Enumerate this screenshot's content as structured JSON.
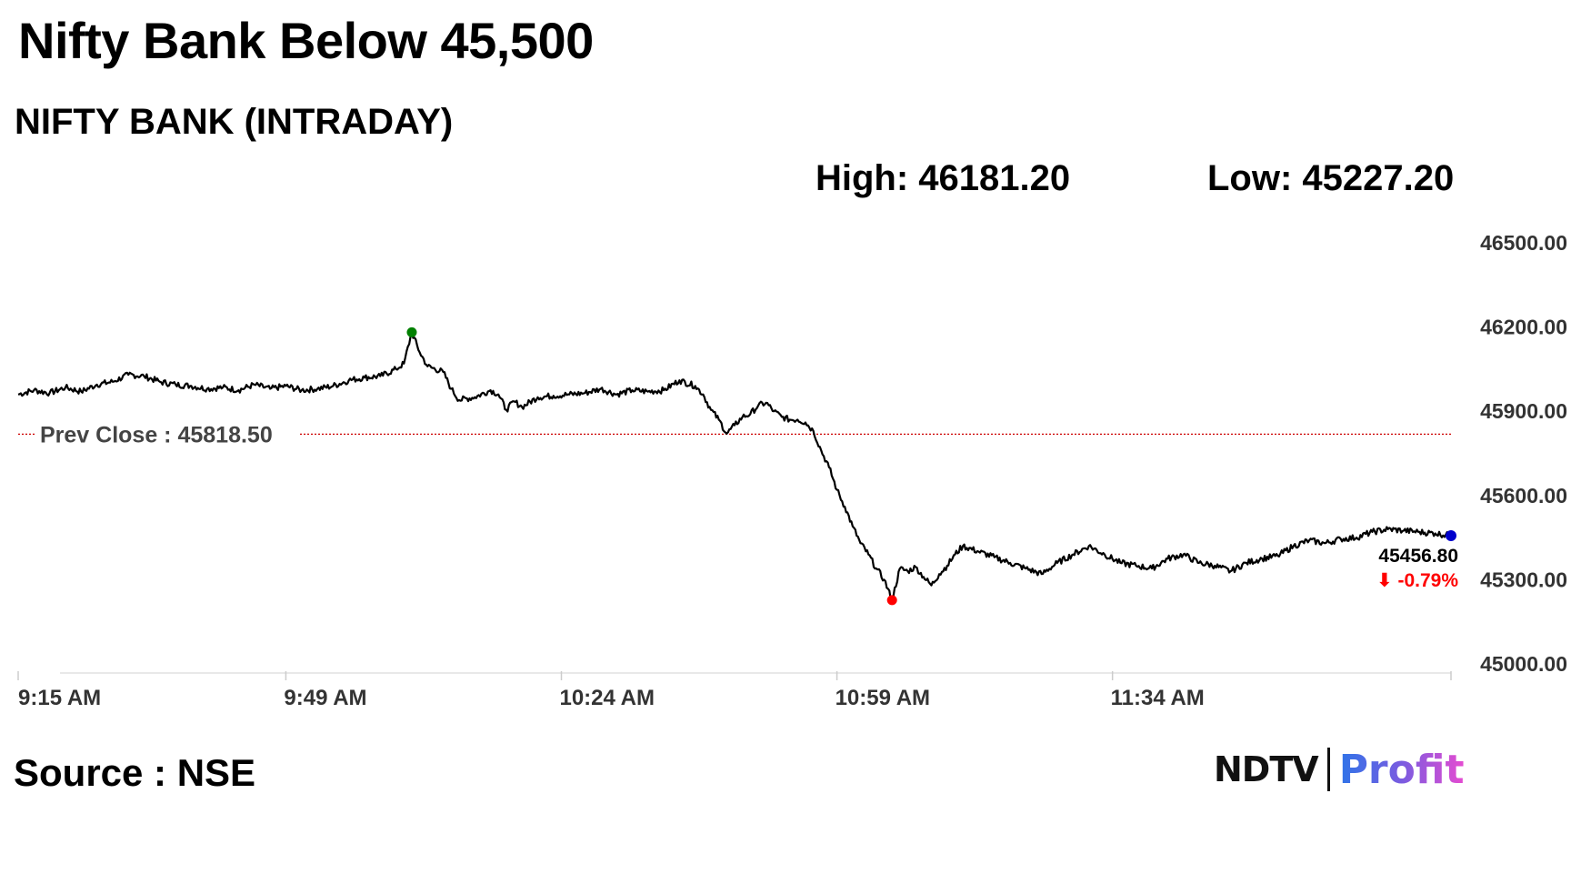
{
  "headline": "Nifty Bank Below 45,500",
  "subtitle": "NIFTY BANK (INTRADAY)",
  "high_label": "High: 46181.20",
  "low_label": "Low: 45227.20",
  "source": "Source : NSE",
  "brand": {
    "left": "NDTV",
    "right": "Profit"
  },
  "colors": {
    "line": "#000000",
    "high_marker": "#008000",
    "low_marker": "#ff0000",
    "last_marker": "#0000cc",
    "prev_close": "#cc0000",
    "change": "#ff0000",
    "axis_text": "#333333"
  },
  "chart_data": {
    "type": "line",
    "title": "NIFTY BANK (INTRADAY)",
    "ylim": [
      45000,
      46500
    ],
    "yticks": [
      "46500.00",
      "46200.00",
      "45900.00",
      "45600.00",
      "45300.00",
      "45000.00"
    ],
    "ytick_values": [
      46500,
      46200,
      45900,
      45600,
      45300,
      45000
    ],
    "xlim": [
      0,
      182
    ],
    "xticks": [
      "9:15 AM",
      "9:49 AM",
      "10:24 AM",
      "10:59 AM",
      "11:34 AM"
    ],
    "xtick_minutes": [
      0,
      34,
      69,
      104,
      139
    ],
    "prev_close": 45818.5,
    "prev_close_label": "Prev Close : 45818.50",
    "high": {
      "minute": 50,
      "value": 46181.2
    },
    "low": {
      "minute": 111,
      "value": 45227.2
    },
    "last": {
      "minute": 182,
      "value": 45456.8,
      "label": "45456.80",
      "change_label": "-0.79%",
      "change_arrow": "⬇"
    },
    "series": [
      {
        "x": [
          0,
          2,
          4,
          6,
          8,
          10,
          12,
          14,
          16,
          18,
          20,
          22,
          24,
          26,
          28,
          30,
          32,
          34,
          36,
          38,
          40,
          42,
          44,
          46,
          48,
          49,
          50,
          51,
          52,
          54,
          55,
          56,
          58,
          60,
          61,
          62,
          63,
          64,
          66,
          68,
          70,
          72,
          74,
          76,
          78,
          80,
          82,
          84,
          86,
          87,
          88,
          89,
          90,
          91,
          92,
          93,
          94,
          95,
          96,
          97,
          98,
          99,
          100,
          101,
          102,
          103,
          104,
          105,
          106,
          107,
          108,
          109,
          110,
          111,
          112,
          113,
          114,
          115,
          116,
          117,
          118,
          119,
          120,
          122,
          124,
          126,
          128,
          130,
          132,
          134,
          136,
          138,
          140,
          142,
          144,
          146,
          148,
          150,
          152,
          154,
          156,
          158,
          160,
          162,
          164,
          166,
          168,
          170,
          172,
          174,
          176,
          178,
          180,
          182
        ],
        "values": [
          45960,
          45975,
          45965,
          45985,
          45970,
          45995,
          46005,
          46030,
          46025,
          46005,
          45995,
          45990,
          45980,
          45985,
          45975,
          45995,
          45980,
          45990,
          45975,
          45980,
          45990,
          46010,
          46020,
          46025,
          46050,
          46070,
          46181.2,
          46110,
          46060,
          46040,
          45980,
          45940,
          45950,
          45975,
          45960,
          45905,
          45935,
          45915,
          45950,
          45955,
          45960,
          45965,
          45980,
          45960,
          45975,
          45970,
          45975,
          46010,
          45990,
          45960,
          45905,
          45870,
          45820,
          45850,
          45880,
          45890,
          45920,
          45930,
          45900,
          45880,
          45870,
          45870,
          45860,
          45830,
          45760,
          45700,
          45620,
          45560,
          45490,
          45430,
          45390,
          45340,
          45300,
          45227.2,
          45340,
          45330,
          45345,
          45310,
          45280,
          45320,
          45350,
          45390,
          45420,
          45400,
          45380,
          45360,
          45340,
          45320,
          45360,
          45390,
          45420,
          45390,
          45360,
          45350,
          45340,
          45375,
          45390,
          45360,
          45350,
          45330,
          45360,
          45375,
          45385,
          45420,
          45440,
          45430,
          45445,
          45450,
          45470,
          45480,
          45475,
          45470,
          45465,
          45456.8
        ]
      }
    ]
  }
}
